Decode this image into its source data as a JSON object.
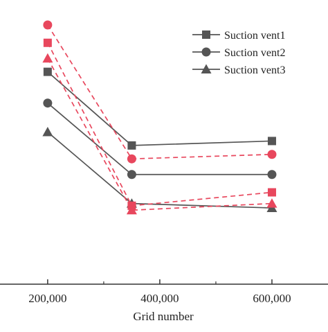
{
  "chart_data": {
    "type": "line",
    "xlabel": "Grid number",
    "x_ticks": [
      {
        "value": 200000,
        "label": "200,000"
      },
      {
        "value": 400000,
        "label": "400,000"
      },
      {
        "value": 600000,
        "label": "600,000"
      }
    ],
    "x_minor_ticks": [
      300000,
      500000
    ],
    "xlim": [
      115000,
      700000
    ],
    "ylim": [
      0,
      1
    ],
    "legend_position": "top-right",
    "colors": {
      "dark": "#555555",
      "red": "#e8475d"
    },
    "series": [
      {
        "name": "Suction vent1",
        "marker": "square",
        "color": "#555555",
        "dash": "solid",
        "in_legend": true,
        "x": [
          200000,
          350000,
          600000
        ],
        "y": [
          0.79,
          0.46,
          0.48
        ]
      },
      {
        "name": "Suction vent2",
        "marker": "circle",
        "color": "#555555",
        "dash": "solid",
        "in_legend": true,
        "x": [
          200000,
          350000,
          600000
        ],
        "y": [
          0.65,
          0.33,
          0.33
        ]
      },
      {
        "name": "Suction vent3",
        "marker": "triangle",
        "color": "#555555",
        "dash": "solid",
        "in_legend": true,
        "x": [
          200000,
          350000,
          600000
        ],
        "y": [
          0.52,
          0.2,
          0.18
        ]
      },
      {
        "name": "",
        "marker": "circle",
        "color": "#e8475d",
        "dash": "dashed",
        "in_legend": false,
        "x": [
          200000,
          350000,
          600000
        ],
        "y": [
          1.0,
          0.4,
          0.42
        ]
      },
      {
        "name": "",
        "marker": "square",
        "color": "#e8475d",
        "dash": "dashed",
        "in_legend": false,
        "x": [
          200000,
          350000,
          600000
        ],
        "y": [
          0.92,
          0.19,
          0.25
        ]
      },
      {
        "name": "",
        "marker": "triangle",
        "color": "#e8475d",
        "dash": "dashed",
        "in_legend": false,
        "x": [
          200000,
          350000,
          600000
        ],
        "y": [
          0.85,
          0.17,
          0.2
        ]
      }
    ]
  }
}
